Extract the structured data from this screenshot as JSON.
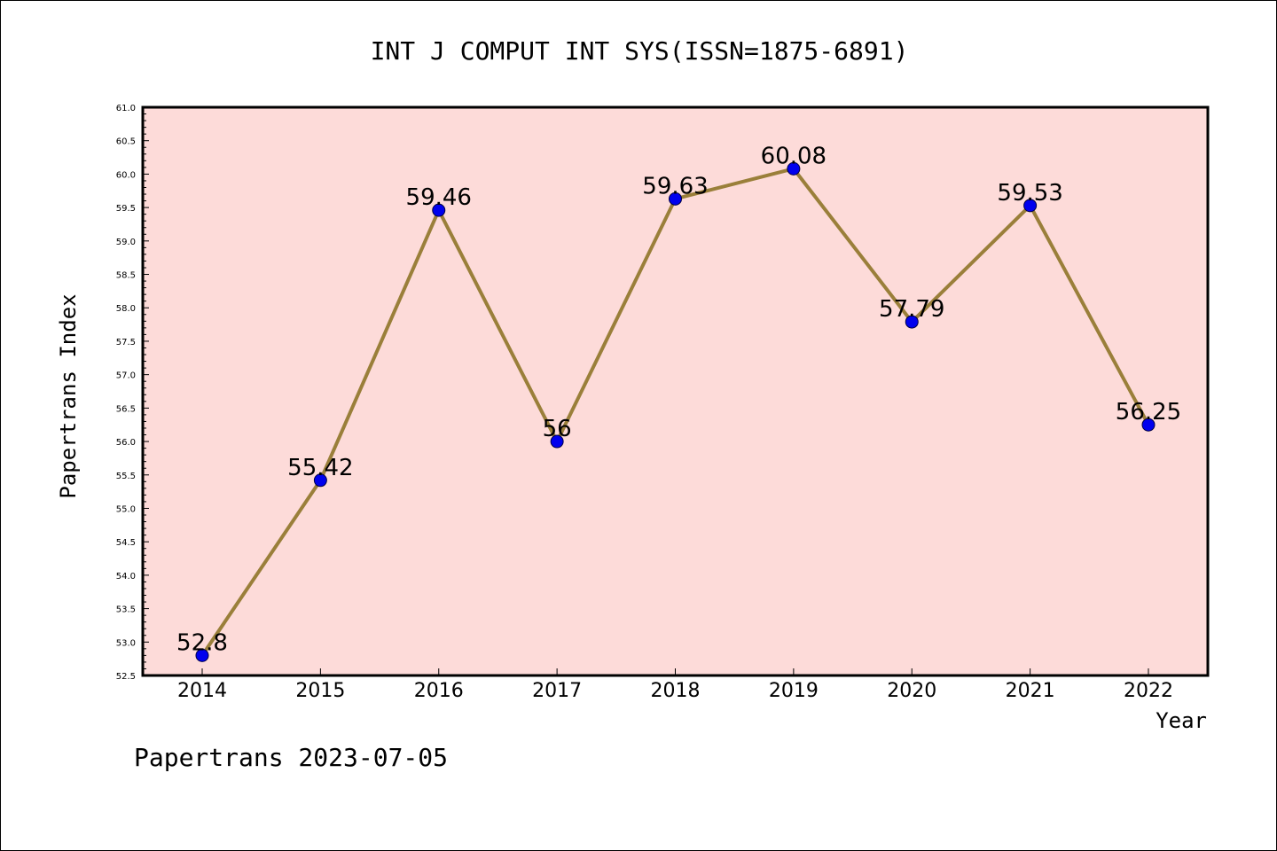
{
  "chart_data": {
    "type": "line",
    "title": "INT J COMPUT INT SYS(ISSN=1875-6891)",
    "xlabel": "Year",
    "ylabel": "Papertrans Index",
    "categories": [
      "2014",
      "2015",
      "2016",
      "2017",
      "2018",
      "2019",
      "2020",
      "2021",
      "2022"
    ],
    "series": [
      {
        "values": [
          52.8,
          55.42,
          59.46,
          56,
          59.63,
          60.08,
          57.79,
          59.53,
          56.25
        ],
        "labels": [
          "52.8",
          "55.42",
          "59.46",
          "56",
          "59.63",
          "60.08",
          "57.79",
          "59.53",
          "56.25"
        ]
      }
    ],
    "ylim": [
      52.5,
      61.0
    ],
    "yticks": [
      "52.5",
      "53.0",
      "53.5",
      "54.0",
      "54.5",
      "55.0",
      "55.5",
      "56.0",
      "56.5",
      "57.0",
      "57.5",
      "58.0",
      "58.5",
      "59.0",
      "59.5",
      "60.0",
      "60.5",
      "61.0"
    ],
    "grid": false,
    "colors": {
      "plot_background": "#fddbd9",
      "line": "#9a7f3a",
      "marker": "#0000ee",
      "marker_edge": "#000044"
    }
  },
  "footer": "Papertrans 2023-07-05"
}
